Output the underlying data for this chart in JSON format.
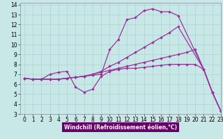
{
  "bg_color": "#c8e8e8",
  "line_color": "#993399",
  "xlabel": "Windchill (Refroidissement éolien,°C)",
  "xlim": [
    -0.5,
    23
  ],
  "ylim": [
    3,
    14.2
  ],
  "xticks": [
    0,
    1,
    2,
    3,
    4,
    5,
    6,
    7,
    8,
    9,
    10,
    11,
    12,
    13,
    14,
    15,
    16,
    17,
    18,
    19,
    20,
    21,
    22,
    23
  ],
  "yticks": [
    3,
    4,
    5,
    6,
    7,
    8,
    9,
    10,
    11,
    12,
    13,
    14
  ],
  "curves": [
    {
      "x": [
        0,
        1,
        2,
        3,
        4,
        5,
        6,
        7,
        8,
        9,
        10,
        11,
        12,
        13,
        14,
        15,
        16,
        17,
        18,
        21,
        22,
        23
      ],
      "y": [
        6.6,
        6.5,
        6.5,
        6.5,
        6.5,
        6.6,
        6.7,
        6.8,
        6.9,
        7.0,
        9.5,
        10.5,
        12.5,
        12.7,
        13.4,
        13.6,
        13.3,
        13.3,
        12.9,
        7.5,
        5.2,
        3.3
      ]
    },
    {
      "x": [
        0,
        1,
        2,
        3,
        4,
        5,
        6,
        7,
        8,
        9,
        10,
        11,
        12,
        13,
        14,
        15,
        16,
        17,
        18,
        21,
        22,
        23
      ],
      "y": [
        6.6,
        6.5,
        6.5,
        6.5,
        6.5,
        6.6,
        6.7,
        6.8,
        7.0,
        7.3,
        7.8,
        8.2,
        8.7,
        9.2,
        9.7,
        10.2,
        10.7,
        11.2,
        11.8,
        7.5,
        5.2,
        3.3
      ]
    },
    {
      "x": [
        0,
        1,
        2,
        3,
        4,
        5,
        6,
        7,
        8,
        9,
        10,
        11,
        12,
        13,
        14,
        15,
        16,
        17,
        18,
        19,
        20,
        21,
        22,
        23
      ],
      "y": [
        6.6,
        6.5,
        6.5,
        6.5,
        6.5,
        6.6,
        6.7,
        6.8,
        7.0,
        7.2,
        7.4,
        7.6,
        7.8,
        8.0,
        8.2,
        8.4,
        8.6,
        8.8,
        9.0,
        9.2,
        9.5,
        7.5,
        5.2,
        3.3
      ]
    },
    {
      "x": [
        0,
        1,
        2,
        3,
        4,
        5,
        6,
        7,
        8,
        9,
        10,
        11,
        12,
        13,
        14,
        15,
        16,
        17,
        18,
        19,
        20,
        21,
        22,
        23
      ],
      "y": [
        6.6,
        6.5,
        6.5,
        7.0,
        7.2,
        7.3,
        5.7,
        5.2,
        5.5,
        6.8,
        7.3,
        7.5,
        7.6,
        7.6,
        7.7,
        7.8,
        7.9,
        8.0,
        8.0,
        8.0,
        8.0,
        7.5,
        5.2,
        3.3
      ]
    }
  ],
  "xlabel_bar_color": "#660066",
  "tick_fontsize": 5.5,
  "xlabel_fontsize": 5.5
}
